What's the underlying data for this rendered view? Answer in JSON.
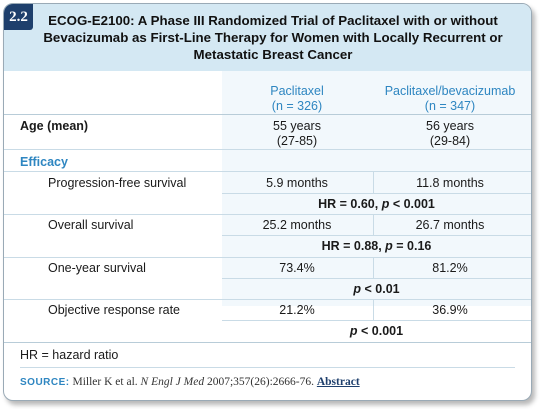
{
  "badge": "2.2",
  "title": "ECOG-E2100: A Phase III Randomized Trial of Paclitaxel with or without Bevacizumab as First-Line Therapy for Women with Locally Recurrent or Metastatic Breast Cancer",
  "columns": [
    {
      "name": "Paclitaxel",
      "n": "(n = 326)"
    },
    {
      "name": "Paclitaxel/bevacizumab",
      "n": "(n = 347)"
    }
  ],
  "age": {
    "label": "Age (mean)",
    "col1": [
      "55 years",
      "(27-85)"
    ],
    "col2": [
      "56 years",
      "(29-84)"
    ]
  },
  "efficacy_label": "Efficacy",
  "rows": [
    {
      "label": "Progression-free survival",
      "col1": "5.9 months",
      "col2": "11.8 months",
      "stat_pre": "HR = 0.60, ",
      "stat_p": "p",
      "stat_post": " < 0.001"
    },
    {
      "label": "Overall survival",
      "col1": "25.2 months",
      "col2": "26.7 months",
      "stat_pre": "HR = 0.88, ",
      "stat_p": "p",
      "stat_post": " = 0.16"
    },
    {
      "label": "One-year survival",
      "col1": "73.4%",
      "col2": "81.2%",
      "stat_pre": "",
      "stat_p": "p",
      "stat_post": " < 0.01"
    },
    {
      "label": "Objective response rate",
      "col1": "21.2%",
      "col2": "36.9%",
      "stat_pre": "",
      "stat_p": "p",
      "stat_post": " < 0.001"
    }
  ],
  "footnote": "HR = hazard ratio",
  "source": {
    "label": "SOURCE:",
    "authors": "Miller K et al.",
    "journal": "N Engl J Med",
    "citation": "2007;357(26):2666-76.",
    "link": "Abstract"
  },
  "colors": {
    "badge": "#1e3f6c",
    "title_band": "#d4e8f3",
    "accent": "#2e86c1"
  }
}
